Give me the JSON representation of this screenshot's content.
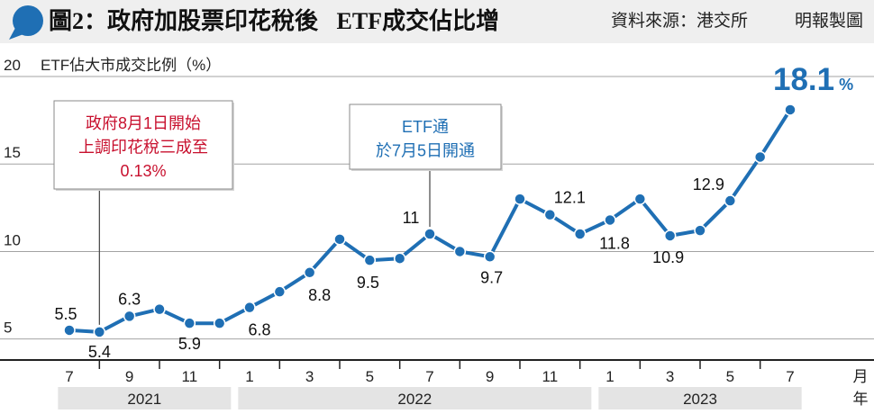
{
  "header": {
    "source": "資料來源：港交所",
    "credit": "明報製圖",
    "icon": "speech-bubble-icon"
  },
  "colors": {
    "line": "#1f6fb4",
    "annotation_red": "#c8102e",
    "annotation_blue": "#1f6fb4",
    "header_bg": "#efefef",
    "year_band": "#e4e4e4",
    "grid": "#a3a3a3",
    "axis": "#222222",
    "icon": "#1f6fb4"
  },
  "chart_data": {
    "type": "line",
    "title": "圖2：政府加股票印花稅後 ETF成交佔比增",
    "ylabel": "ETF佔大市成交比例（%）",
    "xlabel_month": "月",
    "xlabel_year": "年",
    "ylim": [
      3.8,
      20
    ],
    "yticks": [
      5,
      10,
      15,
      20
    ],
    "grid": true,
    "x": [
      "2021-07",
      "2021-08",
      "2021-09",
      "2021-10",
      "2021-11",
      "2021-12",
      "2022-01",
      "2022-02",
      "2022-03",
      "2022-04",
      "2022-05",
      "2022-06",
      "2022-07",
      "2022-08",
      "2022-09",
      "2022-10",
      "2022-11",
      "2022-12",
      "2023-01",
      "2023-02",
      "2023-03",
      "2023-04",
      "2023-05",
      "2023-06",
      "2023-07"
    ],
    "xtick_labels": [
      "7",
      "9",
      "11",
      "1",
      "3",
      "5",
      "7",
      "9",
      "11",
      "1",
      "3",
      "5",
      "7"
    ],
    "years": [
      "2021",
      "2022",
      "2023"
    ],
    "series": [
      {
        "values": [
          5.5,
          5.4,
          6.3,
          6.7,
          5.9,
          5.9,
          6.8,
          7.7,
          8.8,
          10.7,
          9.5,
          9.6,
          11,
          10.0,
          9.7,
          13.0,
          12.1,
          11.0,
          11.8,
          13.0,
          10.9,
          11.2,
          12.9,
          15.4,
          18.1
        ]
      }
    ],
    "data_labels": [
      "5.5",
      "5.4",
      "6.3",
      null,
      "5.9",
      null,
      "6.8",
      null,
      "8.8",
      null,
      "9.5",
      null,
      "11",
      null,
      "9.7",
      null,
      "12.1",
      null,
      "11.8",
      null,
      "10.9",
      null,
      "12.9",
      null,
      "18.1"
    ],
    "highlight_unit": "%",
    "annotations": [
      {
        "at": "2021-08",
        "color": "#c8102e",
        "lines": [
          "政府8月1日開始",
          "上調印花稅三成至",
          "0.13%"
        ]
      },
      {
        "at": "2022-07",
        "color": "#1f6fb4",
        "lines": [
          "ETF通",
          "於7月5日開通"
        ]
      }
    ]
  }
}
